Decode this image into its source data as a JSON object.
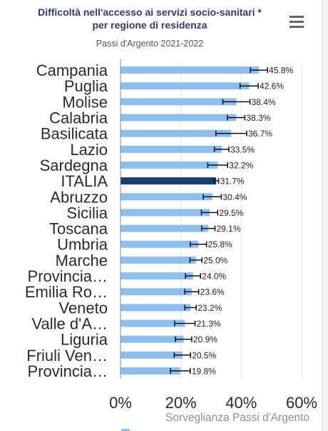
{
  "header": {
    "title_line1": "Difficoltà nell'accesso ai servizi socio-sanitari *",
    "title_line2": "per regione di residenza",
    "subtitle": "Passi d'Argento 2021-2022"
  },
  "menu": {
    "icon": "hamburger-menu-icon"
  },
  "credit": "Sorveglianza Passi d'Argento",
  "colors": {
    "bar": "#8cbfef",
    "highlight": "#163f70",
    "errorbar": "#111111",
    "axis": "#888888",
    "grid": "#e6e6e6"
  },
  "chart_data": {
    "type": "bar",
    "orientation": "horizontal",
    "title": "Difficoltà nell'accesso ai servizi socio-sanitari * per regione di residenza",
    "subtitle": "Passi d'Argento 2021-2022",
    "categories": [
      "Campania",
      "Puglia",
      "Molise",
      "Calabria",
      "Basilicata",
      "Lazio",
      "Sardegna",
      "ITALIA",
      "Abruzzo",
      "Sicilia",
      "Toscana",
      "Umbria",
      "Marche",
      "Provincia…",
      "Emilia Ro…",
      "Veneto",
      "Valle d'A…",
      "Liguria",
      "Friuli Ven…",
      "Provincia…"
    ],
    "values": [
      45.8,
      42.6,
      38.4,
      38.3,
      36.7,
      33.5,
      32.2,
      31.7,
      30.4,
      29.5,
      29.1,
      25.8,
      25.0,
      24.0,
      23.6,
      23.2,
      21.3,
      20.9,
      20.5,
      19.8
    ],
    "data_labels": [
      "45.8%",
      "42.6%",
      "38.4%",
      "38.3%",
      "36.7%",
      "33.5%",
      "32.2%",
      "31.7%",
      "30.4%",
      "29.5%",
      "29.1%",
      "25.8%",
      "25.0%",
      "24.0%",
      "23.6%",
      "23.2%",
      "21.3%",
      "20.9%",
      "20.5%",
      "19.8%"
    ],
    "ci_low": [
      43.0,
      39.6,
      33.9,
      35.4,
      31.6,
      31.1,
      28.9,
      30.9,
      27.4,
      26.8,
      26.9,
      23.1,
      23.0,
      21.5,
      21.3,
      21.3,
      17.9,
      18.2,
      17.8,
      16.5
    ],
    "ci_high": [
      48.7,
      45.6,
      42.9,
      41.2,
      41.8,
      35.9,
      35.5,
      32.5,
      33.4,
      32.2,
      31.3,
      28.5,
      27.0,
      26.5,
      25.9,
      25.1,
      24.7,
      23.6,
      23.2,
      23.1
    ],
    "highlight_category": "ITALIA",
    "xlim": [
      0,
      60
    ],
    "x_ticks": [
      0,
      20,
      40,
      60
    ],
    "x_tick_labels": [
      "0%",
      "20%",
      "40%",
      "60%"
    ],
    "grid": true
  }
}
